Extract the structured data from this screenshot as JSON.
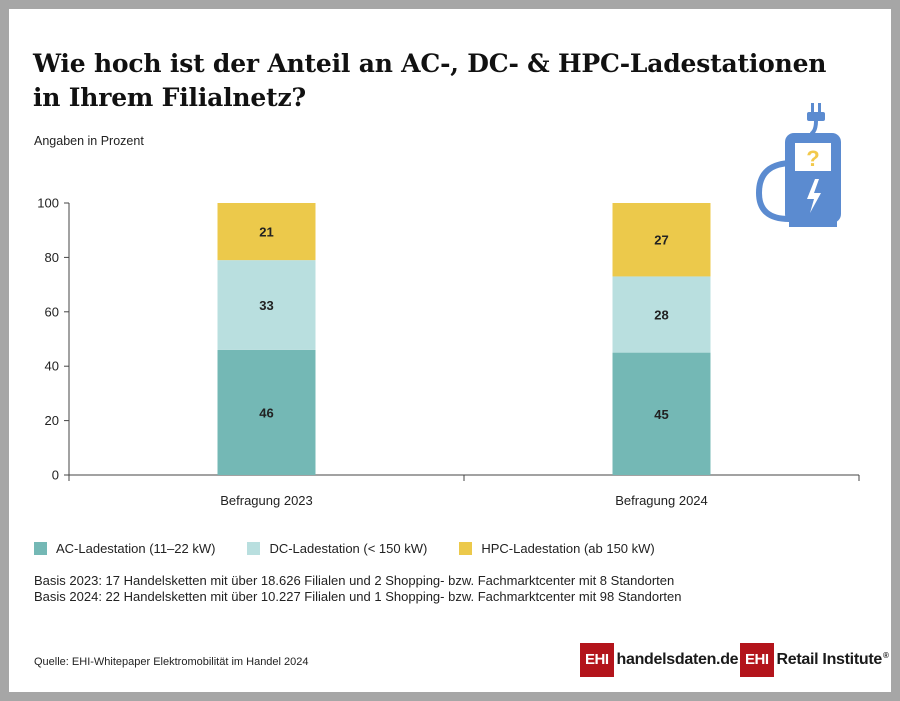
{
  "header": {
    "title_line1": "Wie hoch ist der Anteil an AC-, DC- & HPC-Ladestationen",
    "title_line2": "in Ihrem Filialnetz?",
    "subtitle": "Angaben in Prozent"
  },
  "chart_data": {
    "type": "bar",
    "stacked": true,
    "categories": [
      "Befragung 2023",
      "Befragung 2024"
    ],
    "series": [
      {
        "name": "AC-Ladestation (11–22 kW)",
        "values": [
          46,
          45
        ],
        "color": "#74b8b5"
      },
      {
        "name": "DC-Ladestation (< 150 kW)",
        "values": [
          33,
          28
        ],
        "color": "#b9dfdf"
      },
      {
        "name": "HPC-Ladestation (ab 150 kW)",
        "values": [
          21,
          27
        ],
        "color": "#ecc94b"
      }
    ],
    "ylim": [
      0,
      100
    ],
    "yticks": [
      0,
      20,
      40,
      60,
      80,
      100
    ],
    "ylabel": "",
    "xlabel": "",
    "grid": false
  },
  "legend": [
    {
      "label": "AC-Ladestation (11–22 kW)",
      "color": "#74b8b5"
    },
    {
      "label": "DC-Ladestation (< 150 kW)",
      "color": "#b9dfdf"
    },
    {
      "label": "HPC-Ladestation (ab 150 kW)",
      "color": "#ecc94b"
    }
  ],
  "notes": {
    "basis_2023": "Basis 2023: 17 Handelsketten mit über 18.626 Filialen und 2 Shopping- bzw. Fachmarktcenter mit 8 Standorten",
    "basis_2024": "Basis 2024: 22 Handelsketten mit über 10.227 Filialen und 1 Shopping- bzw. Fachmarktcenter mit 98 Standorten"
  },
  "footer": {
    "source": "Quelle: EHI-Whitepaper Elektromobilität im Handel 2024",
    "logo1_box": "EHI",
    "logo1_text": "handelsdaten.de",
    "logo2_box": "EHI",
    "logo2_text": "Retail Institute",
    "logo2_reg": "®"
  },
  "icon": {
    "name": "ev-charger-icon",
    "glyph": "?",
    "color": "#5b8bd0",
    "accent": "#f2c94c"
  }
}
